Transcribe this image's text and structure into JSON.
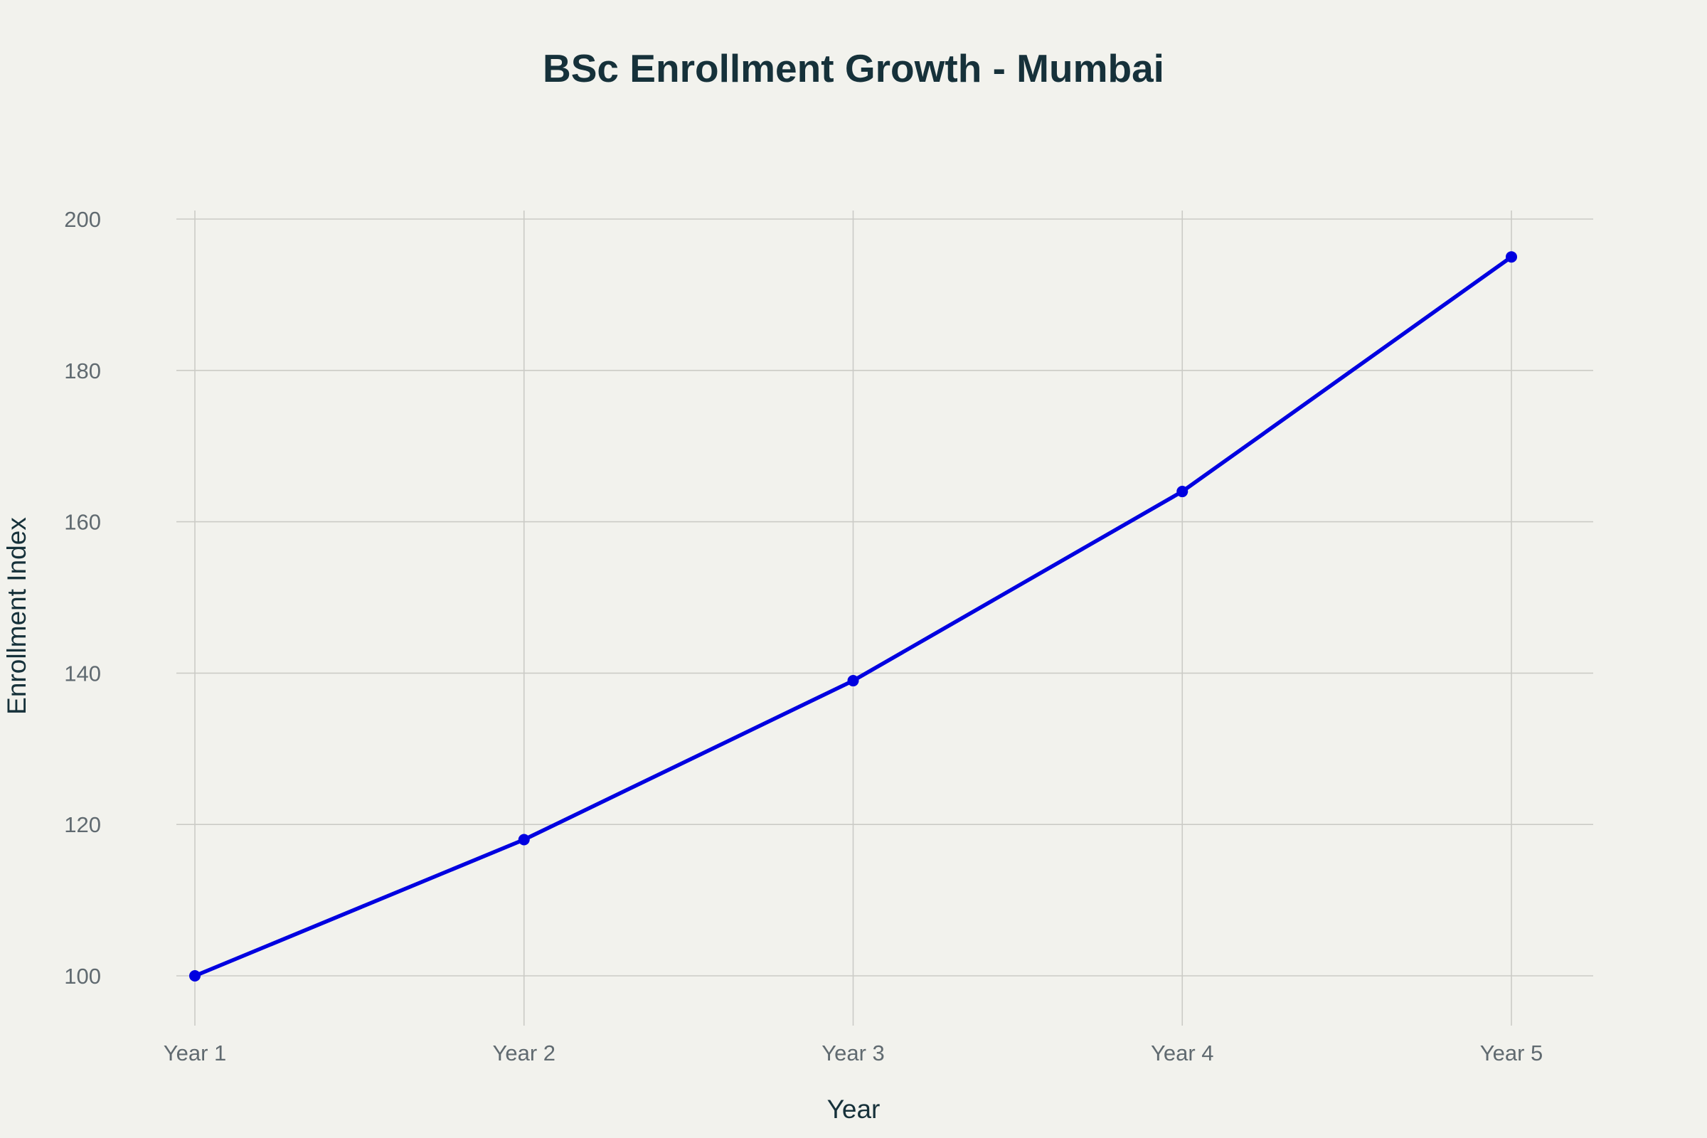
{
  "chart_data": {
    "type": "line",
    "title": "BSc Enrollment Growth - Mumbai",
    "xlabel": "Year",
    "ylabel": "Enrollment Index",
    "categories": [
      "Year 1",
      "Year 2",
      "Year 3",
      "Year 4",
      "Year 5"
    ],
    "series": [
      {
        "values": [
          100,
          118,
          139,
          164,
          195
        ],
        "color": "#0000e0"
      }
    ],
    "ylim": [
      94,
      201
    ],
    "yticks": [
      100,
      120,
      140,
      160,
      180,
      200
    ],
    "grid": true,
    "legend": "none"
  },
  "colors": {
    "background": "#f2f2ed",
    "grid": "#cbcbc6",
    "line": "#0000e0",
    "title": "#16313a",
    "tick": "#606a70"
  }
}
